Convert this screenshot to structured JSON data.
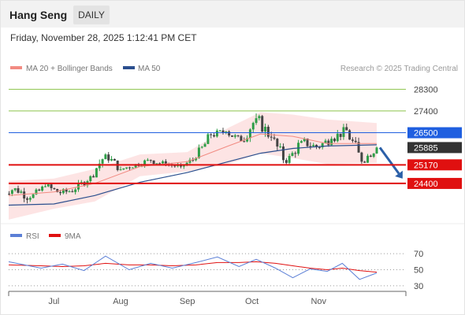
{
  "header": {
    "instrument": "Hang Seng",
    "period_button": "DAILY",
    "datetime": "Friday, November 28, 2025 1:12:41 PM CET",
    "attribution": "Research © 2025 Trading Central"
  },
  "legend": {
    "ma20_bb": "MA 20 + Bollinger Bands",
    "ma50": "MA 50",
    "rsi": "RSI",
    "ma9": "9MA"
  },
  "colors": {
    "bullish": "#2e9e48",
    "bearish": "#444444",
    "ma20": "#f28b82",
    "bollinger_fill": "#fde4e4",
    "ma50": "#2b4f8e",
    "rsi": "#5b7fd6",
    "ma9": "#e01010",
    "resistance": "#8cc34a",
    "pivot": "#1f5fe0",
    "support": "#e01010",
    "last_price": "#333333"
  },
  "chart_data": [
    {
      "type": "candlestick",
      "ylim": [
        22800,
        28800
      ],
      "xaxis": {
        "range": [
          "2025-06-10",
          "2025-11-28"
        ],
        "tick_labels": [
          "Jul",
          "Aug",
          "Sep",
          "Oct",
          "Nov"
        ]
      },
      "ohlc_weekly": [
        {
          "date": "2025-06-13",
          "o": 23950,
          "h": 24380,
          "l": 23700,
          "c": 24200
        },
        {
          "date": "2025-06-20",
          "o": 24200,
          "h": 24400,
          "l": 23500,
          "c": 23800
        },
        {
          "date": "2025-06-27",
          "o": 23800,
          "h": 24400,
          "l": 23700,
          "c": 24280
        },
        {
          "date": "2025-07-04",
          "o": 24280,
          "h": 24700,
          "l": 23900,
          "c": 24000
        },
        {
          "date": "2025-07-11",
          "o": 24000,
          "h": 24300,
          "l": 23650,
          "c": 24150
        },
        {
          "date": "2025-07-18",
          "o": 24150,
          "h": 24800,
          "l": 24050,
          "c": 24700
        },
        {
          "date": "2025-07-25",
          "o": 24700,
          "h": 25750,
          "l": 24650,
          "c": 25600
        },
        {
          "date": "2025-08-01",
          "o": 25600,
          "h": 25700,
          "l": 24900,
          "c": 24980
        },
        {
          "date": "2025-08-08",
          "o": 24980,
          "h": 25400,
          "l": 24800,
          "c": 25200
        },
        {
          "date": "2025-08-15",
          "o": 25200,
          "h": 25650,
          "l": 25050,
          "c": 25350
        },
        {
          "date": "2025-08-22",
          "o": 25350,
          "h": 25500,
          "l": 24950,
          "c": 25180
        },
        {
          "date": "2025-08-29",
          "o": 25180,
          "h": 25450,
          "l": 24950,
          "c": 25100
        },
        {
          "date": "2025-09-05",
          "o": 25100,
          "h": 25600,
          "l": 25000,
          "c": 25450
        },
        {
          "date": "2025-09-12",
          "o": 25450,
          "h": 26500,
          "l": 25400,
          "c": 26400
        },
        {
          "date": "2025-09-19",
          "o": 26400,
          "h": 26900,
          "l": 26200,
          "c": 26550
        },
        {
          "date": "2025-09-26",
          "o": 26550,
          "h": 26700,
          "l": 25950,
          "c": 26150
        },
        {
          "date": "2025-10-03",
          "o": 26150,
          "h": 27300,
          "l": 26100,
          "c": 27100
        },
        {
          "date": "2025-10-10",
          "o": 27100,
          "h": 27250,
          "l": 26000,
          "c": 26300
        },
        {
          "date": "2025-10-17",
          "o": 26300,
          "h": 26450,
          "l": 25200,
          "c": 25250
        },
        {
          "date": "2025-10-24",
          "o": 25250,
          "h": 26200,
          "l": 25200,
          "c": 26150
        },
        {
          "date": "2025-10-31",
          "o": 26150,
          "h": 26700,
          "l": 25800,
          "c": 25900
        },
        {
          "date": "2025-11-07",
          "o": 25900,
          "h": 26500,
          "l": 25650,
          "c": 26250
        },
        {
          "date": "2025-11-14",
          "o": 26250,
          "h": 27000,
          "l": 26100,
          "c": 26600
        },
        {
          "date": "2025-11-21",
          "o": 26600,
          "h": 26650,
          "l": 25200,
          "c": 25300
        },
        {
          "date": "2025-11-28",
          "o": 25300,
          "h": 26050,
          "l": 25250,
          "c": 25885
        }
      ],
      "series": [
        {
          "name": "MA 20",
          "x": [
            "2025-06-10",
            "2025-07-01",
            "2025-07-20",
            "2025-08-10",
            "2025-09-01",
            "2025-09-20",
            "2025-10-05",
            "2025-10-20",
            "2025-11-05",
            "2025-11-28"
          ],
          "y": [
            23900,
            24050,
            24400,
            25100,
            25300,
            25950,
            26450,
            26350,
            26050,
            26050
          ]
        },
        {
          "name": "Bollinger Upper",
          "x": [
            "2025-06-10",
            "2025-07-01",
            "2025-07-20",
            "2025-08-10",
            "2025-09-01",
            "2025-09-20",
            "2025-10-05",
            "2025-10-20",
            "2025-11-05",
            "2025-11-28"
          ],
          "y": [
            24500,
            24600,
            25000,
            25600,
            25700,
            26700,
            27350,
            27250,
            27050,
            26900
          ]
        },
        {
          "name": "Bollinger Lower",
          "x": [
            "2025-06-10",
            "2025-07-01",
            "2025-07-20",
            "2025-08-10",
            "2025-09-01",
            "2025-09-20",
            "2025-10-05",
            "2025-10-20",
            "2025-11-05",
            "2025-11-28"
          ],
          "y": [
            22900,
            23350,
            23650,
            24700,
            24900,
            25200,
            25650,
            25450,
            25200,
            25250
          ]
        },
        {
          "name": "MA 50",
          "x": [
            "2025-06-10",
            "2025-07-01",
            "2025-07-20",
            "2025-08-10",
            "2025-09-01",
            "2025-09-20",
            "2025-10-05",
            "2025-10-20",
            "2025-11-05",
            "2025-11-28"
          ],
          "y": [
            23500,
            23550,
            23900,
            24450,
            24850,
            25300,
            25650,
            25850,
            25950,
            26000
          ]
        }
      ],
      "levels": [
        {
          "label": "28300",
          "value": 28300,
          "kind": "resistance"
        },
        {
          "label": "27400",
          "value": 27400,
          "kind": "resistance"
        },
        {
          "label": "26500",
          "value": 26500,
          "kind": "pivot"
        },
        {
          "label": "25885",
          "value": 25885,
          "kind": "last"
        },
        {
          "label": "25170",
          "value": 25170,
          "kind": "support"
        },
        {
          "label": "24400",
          "value": 24400,
          "kind": "support"
        }
      ],
      "projection_arrow": {
        "from_date": "2025-11-28",
        "from_value": 25885,
        "to_date": "2025-12-10",
        "to_value": 24600
      }
    },
    {
      "type": "line",
      "ylim": [
        25,
        80
      ],
      "ticks": [
        70,
        50,
        30
      ],
      "series": [
        {
          "name": "RSI",
          "x": [
            "2025-06-10",
            "2025-06-25",
            "2025-07-05",
            "2025-07-15",
            "2025-07-25",
            "2025-08-05",
            "2025-08-15",
            "2025-08-25",
            "2025-09-05",
            "2025-09-15",
            "2025-09-25",
            "2025-10-03",
            "2025-10-12",
            "2025-10-20",
            "2025-10-28",
            "2025-11-05",
            "2025-11-12",
            "2025-11-20",
            "2025-11-28"
          ],
          "y": [
            60,
            52,
            57,
            49,
            67,
            50,
            58,
            52,
            59,
            66,
            54,
            63,
            52,
            40,
            51,
            48,
            58,
            38,
            46
          ]
        },
        {
          "name": "9MA",
          "x": [
            "2025-06-10",
            "2025-06-25",
            "2025-07-05",
            "2025-07-15",
            "2025-07-25",
            "2025-08-05",
            "2025-08-15",
            "2025-08-25",
            "2025-09-05",
            "2025-09-15",
            "2025-09-25",
            "2025-10-03",
            "2025-10-12",
            "2025-10-20",
            "2025-10-28",
            "2025-11-05",
            "2025-11-12",
            "2025-11-20",
            "2025-11-28"
          ],
          "y": [
            56,
            55,
            54,
            55,
            58,
            56,
            56,
            55,
            56,
            59,
            59,
            60,
            58,
            55,
            52,
            50,
            52,
            49,
            47
          ]
        }
      ]
    }
  ]
}
